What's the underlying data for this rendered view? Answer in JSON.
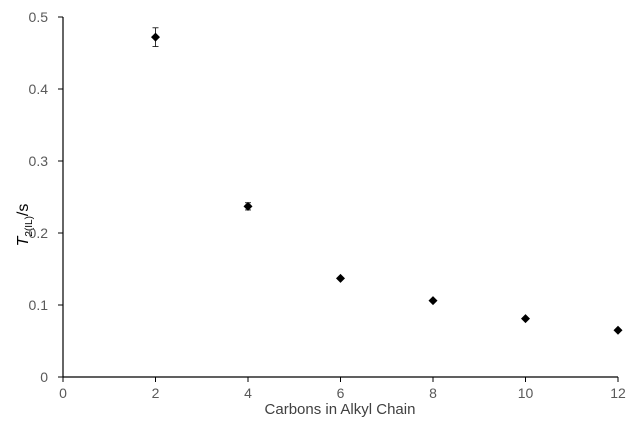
{
  "chart_data": {
    "type": "scatter",
    "xlabel": "Carbons in Alkyl Chain",
    "ylabel": {
      "main": "T",
      "subscript": "2(IL)",
      "suffix": "/s"
    },
    "xlim": [
      0,
      12
    ],
    "ylim": [
      0,
      0.5
    ],
    "x_ticks": [
      "0",
      "2",
      "4",
      "6",
      "8",
      "10",
      "12"
    ],
    "y_ticks": [
      "0",
      "0.1",
      "0.2",
      "0.3",
      "0.4",
      "0.5"
    ],
    "grid": false,
    "marker": "diamond",
    "marker_color": "#000000",
    "series": [
      {
        "points": [
          {
            "x": 2,
            "y": 0.472,
            "err": 0.013
          },
          {
            "x": 4,
            "y": 0.237,
            "err": 0.005
          },
          {
            "x": 6,
            "y": 0.137,
            "err": 0.0
          },
          {
            "x": 8,
            "y": 0.106,
            "err": 0.0
          },
          {
            "x": 10,
            "y": 0.081,
            "err": 0.0
          },
          {
            "x": 12,
            "y": 0.065,
            "err": 0.0
          }
        ]
      }
    ]
  }
}
